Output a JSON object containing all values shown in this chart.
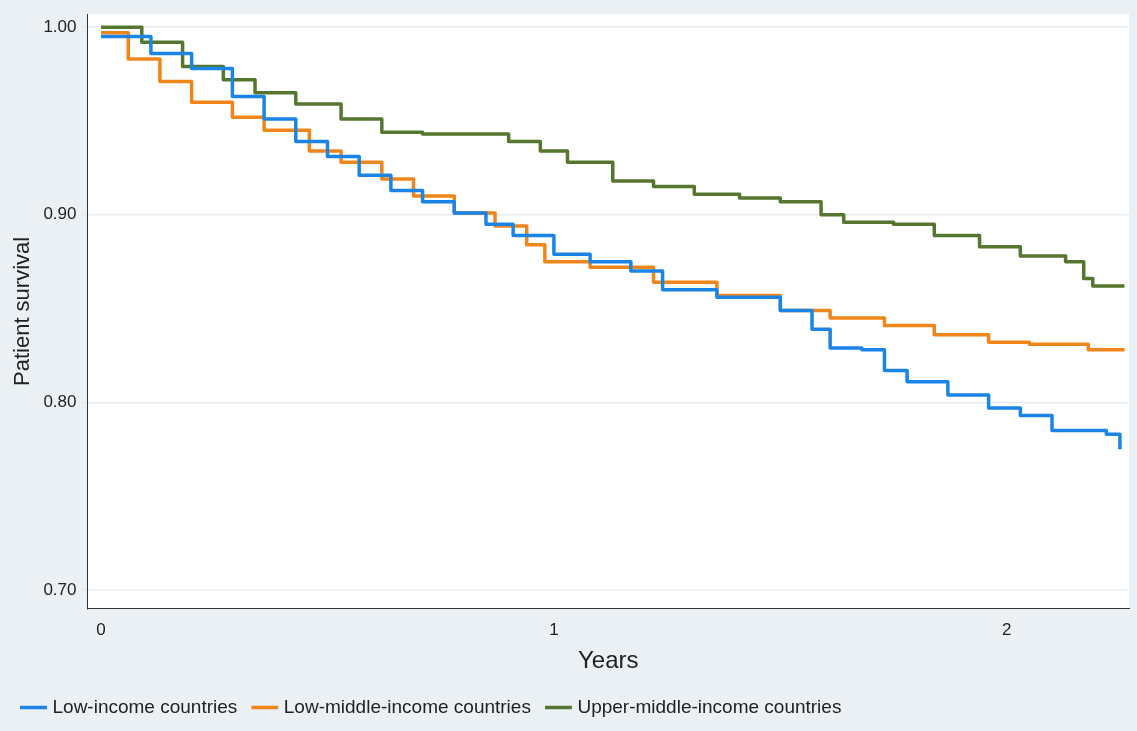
{
  "chart_data": {
    "type": "step",
    "xlabel": "Years",
    "ylabel": "Patient survival",
    "xlim": [
      -0.03,
      2.27
    ],
    "ylim": [
      0.69,
      1.007
    ],
    "xticks": [
      0,
      1,
      2
    ],
    "yticks": [
      {
        "value": 0.7,
        "label": "0.70"
      },
      {
        "value": 0.8,
        "label": "0.80"
      },
      {
        "value": 0.9,
        "label": "0.90"
      },
      {
        "value": 1.0,
        "label": "1.00"
      }
    ],
    "grid": "y",
    "legend": "bottom",
    "line_style": "solid",
    "marker": "none",
    "series": [
      {
        "name": "Low-income countries",
        "color": "#1a85e6",
        "x": [
          0,
          0.11,
          0.2,
          0.29,
          0.36,
          0.43,
          0.5,
          0.57,
          0.64,
          0.71,
          0.78,
          0.85,
          0.91,
          1.0,
          1.08,
          1.17,
          1.24,
          1.36,
          1.5,
          1.57,
          1.61,
          1.68,
          1.73,
          1.78,
          1.87,
          1.96,
          2.03,
          2.1,
          2.22,
          2.25
        ],
        "values": [
          0.995,
          0.986,
          0.978,
          0.963,
          0.951,
          0.939,
          0.931,
          0.921,
          0.913,
          0.907,
          0.901,
          0.895,
          0.889,
          0.879,
          0.875,
          0.87,
          0.86,
          0.856,
          0.849,
          0.839,
          0.829,
          0.828,
          0.817,
          0.811,
          0.804,
          0.797,
          0.793,
          0.785,
          0.783,
          0.775
        ]
      },
      {
        "name": "Low-middle-income countries",
        "color": "#f0861a",
        "x": [
          0,
          0.06,
          0.13,
          0.2,
          0.29,
          0.36,
          0.46,
          0.53,
          0.62,
          0.69,
          0.78,
          0.87,
          0.94,
          0.98,
          1.08,
          1.22,
          1.36,
          1.5,
          1.61,
          1.73,
          1.84,
          1.96,
          2.05,
          2.18,
          2.26
        ],
        "values": [
          0.997,
          0.983,
          0.971,
          0.96,
          0.952,
          0.945,
          0.934,
          0.928,
          0.919,
          0.91,
          0.901,
          0.894,
          0.884,
          0.875,
          0.872,
          0.864,
          0.857,
          0.849,
          0.845,
          0.841,
          0.836,
          0.832,
          0.831,
          0.828,
          0.828
        ]
      },
      {
        "name": "Upper-middle-income countries",
        "color": "#55762f",
        "x": [
          0,
          0.09,
          0.18,
          0.27,
          0.34,
          0.43,
          0.53,
          0.62,
          0.71,
          0.8,
          0.9,
          0.97,
          1.03,
          1.13,
          1.22,
          1.31,
          1.41,
          1.5,
          1.59,
          1.64,
          1.75,
          1.84,
          1.94,
          2.03,
          2.13,
          2.17,
          2.19,
          2.26
        ],
        "values": [
          1.0,
          0.992,
          0.979,
          0.972,
          0.965,
          0.959,
          0.951,
          0.944,
          0.943,
          0.943,
          0.939,
          0.934,
          0.928,
          0.918,
          0.915,
          0.911,
          0.909,
          0.907,
          0.9,
          0.896,
          0.895,
          0.889,
          0.883,
          0.878,
          0.875,
          0.866,
          0.862,
          0.862
        ]
      }
    ]
  }
}
